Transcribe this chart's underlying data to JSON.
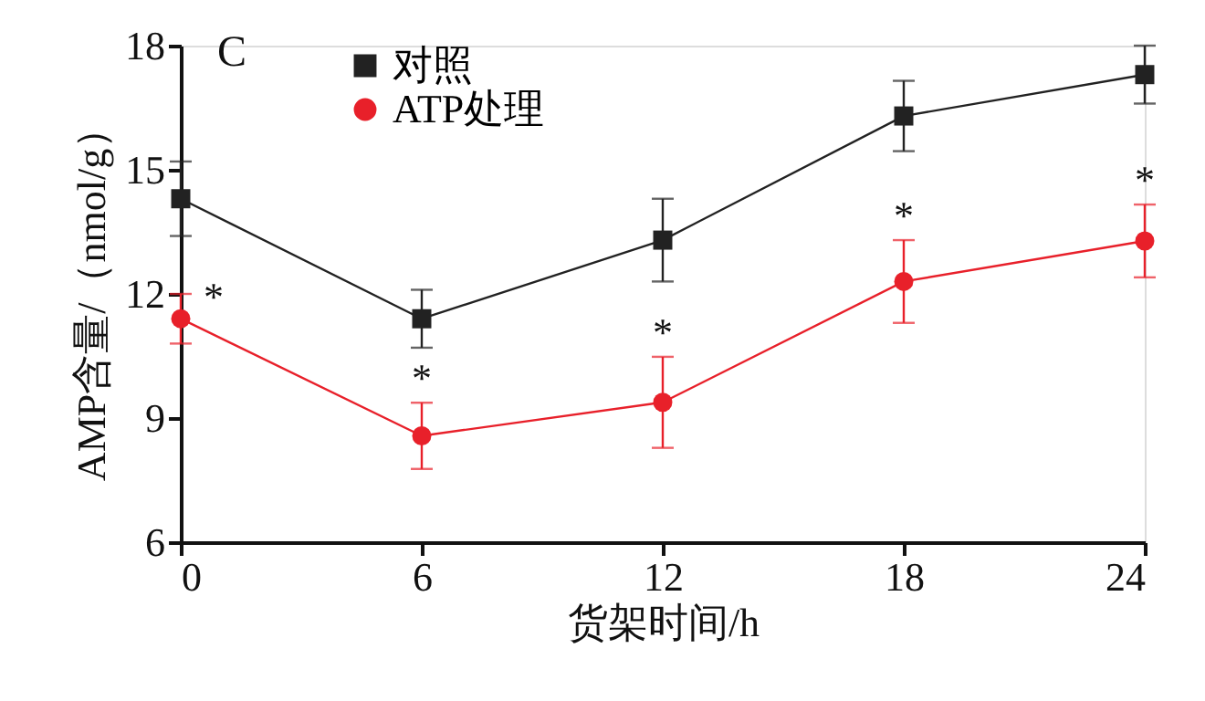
{
  "chart_data": {
    "type": "line",
    "xlabel": "货架时间/h",
    "ylabel": "AMP含量/（nmol/g）",
    "x": [
      0,
      6,
      12,
      18,
      24
    ],
    "series": [
      {
        "name": "对照",
        "color": "#222222",
        "marker": "square",
        "values": [
          14.3,
          11.4,
          13.3,
          16.3,
          17.3
        ],
        "errors": [
          0.9,
          0.7,
          1.0,
          0.85,
          0.7
        ]
      },
      {
        "name": "ATP处理",
        "color": "#e8202a",
        "marker": "circle",
        "values": [
          11.4,
          8.57,
          9.38,
          12.3,
          13.28
        ],
        "errors": [
          0.6,
          0.8,
          1.1,
          1.0,
          0.88
        ]
      }
    ],
    "xlim": [
      0,
      24
    ],
    "xticks": [
      0,
      6,
      12,
      18,
      24
    ],
    "ylim": [
      6,
      18
    ],
    "yticks": [
      6,
      9,
      12,
      15,
      18
    ],
    "grid": false,
    "legend": "top left",
    "annotations": [
      "C",
      {
        "text": "*",
        "x": 0,
        "y": 12.0
      },
      {
        "text": "*",
        "x": 6,
        "y": 9.37
      },
      {
        "text": "*",
        "x": 12,
        "y": 10.48
      },
      {
        "text": "*",
        "x": 18,
        "y": 13.3
      },
      {
        "text": "*",
        "x": 24,
        "y": 14.16
      }
    ]
  }
}
